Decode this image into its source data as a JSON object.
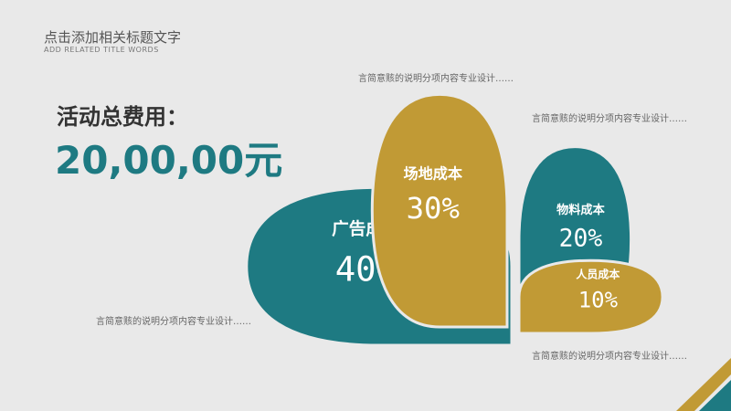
{
  "header": {
    "title": "点击添加相关标题文字",
    "subtitle": "ADD RELATED TITLE WORDS"
  },
  "summary": {
    "label": "活动总费用：",
    "amount": "20,00,00元"
  },
  "chart_data": {
    "type": "petal",
    "categories": [
      "广告成本",
      "场地成本",
      "物料成本",
      "人员成本"
    ],
    "values": [
      40,
      30,
      20,
      10
    ],
    "value_labels": [
      "40%",
      "30%",
      "20%",
      "10%"
    ],
    "colors": [
      "#1e7a82",
      "#c19a35",
      "#1e7a82",
      "#c19a35"
    ],
    "descriptions": [
      "言简意赅的说明分项内容专业设计……",
      "言简意赅的说明分项内容专业设计……",
      "言简意赅的说明分项内容专业设计……",
      "言简意赅的说明分项内容专业设计……"
    ]
  }
}
